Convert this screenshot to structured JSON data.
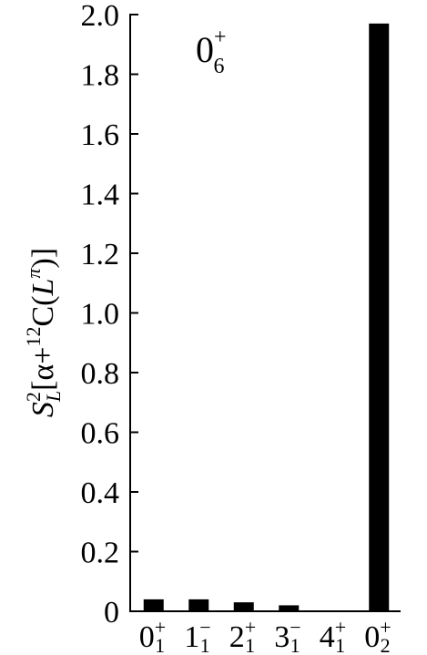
{
  "chart_data": {
    "type": "bar",
    "title": "",
    "annotation": {
      "base": "0",
      "sup": "+",
      "sub": "6"
    },
    "ylabel": {
      "S": "S",
      "sup2": "2",
      "subL": "L",
      "open": "[α+",
      "sup12": "12",
      "c": "C(",
      "Lsym": "L",
      "pi": "π",
      "close": ")]"
    },
    "xlabel": "",
    "ylim": [
      0,
      2.0
    ],
    "yticks": [
      "0",
      "0.2",
      "0.4",
      "0.6",
      "0.8",
      "1.0",
      "1.2",
      "1.4",
      "1.6",
      "1.8",
      "2.0"
    ],
    "grid": false,
    "bar_color": "#000000",
    "categories": [
      {
        "base": "0",
        "sup": "+",
        "sub": "1"
      },
      {
        "base": "1",
        "sup": "−",
        "sub": "1"
      },
      {
        "base": "2",
        "sup": "+",
        "sub": "1"
      },
      {
        "base": "3",
        "sup": "−",
        "sub": "1"
      },
      {
        "base": "4",
        "sup": "+",
        "sub": "1"
      },
      {
        "base": "0",
        "sup": "+",
        "sub": "2"
      }
    ],
    "values": [
      0.04,
      0.04,
      0.03,
      0.02,
      0.003,
      1.97
    ]
  }
}
